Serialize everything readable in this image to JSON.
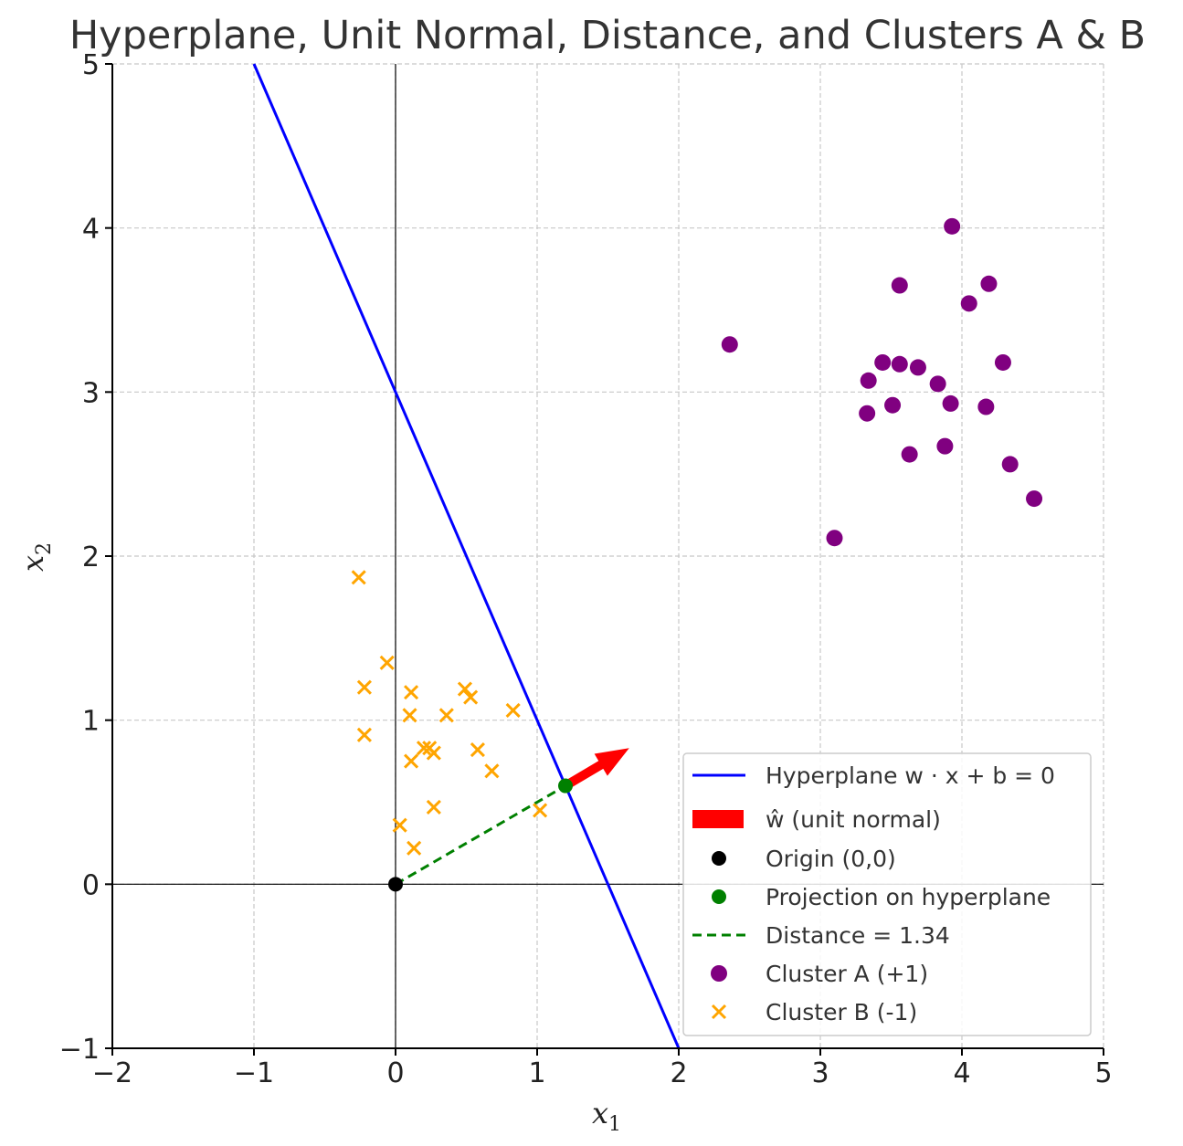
{
  "chart_data": {
    "type": "scatter",
    "title": "Hyperplane, Unit Normal, Distance, and Clusters A & B",
    "xlabel": "x",
    "xlabel_sub": "1",
    "ylabel": "x",
    "ylabel_sub": "2",
    "xlim": [
      -2,
      5
    ],
    "ylim": [
      -1,
      5
    ],
    "xticks": [
      -2,
      -1,
      0,
      1,
      2,
      3,
      4,
      5
    ],
    "yticks": [
      -1,
      0,
      1,
      2,
      3,
      4,
      5
    ],
    "grid": true,
    "legend_position": "lower-right",
    "hyperplane": {
      "x": [
        -1,
        2
      ],
      "y": [
        5,
        -1
      ],
      "color": "#0000ff"
    },
    "unit_normal": {
      "from": [
        1.2,
        0.6
      ],
      "to": [
        1.65,
        0.83
      ],
      "color": "#ff0000"
    },
    "origin": {
      "x": 0,
      "y": 0,
      "color": "#000000"
    },
    "projection": {
      "x": 1.2,
      "y": 0.6,
      "color": "#008000"
    },
    "distance_line": {
      "x": [
        0,
        1.2
      ],
      "y": [
        0,
        0.6
      ],
      "color": "#008000"
    },
    "cluster_a": {
      "color": "#800080",
      "points": [
        [
          2.36,
          3.29
        ],
        [
          3.93,
          4.01
        ],
        [
          3.56,
          3.65
        ],
        [
          4.19,
          3.66
        ],
        [
          4.05,
          3.54
        ],
        [
          3.44,
          3.18
        ],
        [
          3.56,
          3.17
        ],
        [
          3.69,
          3.15
        ],
        [
          4.29,
          3.18
        ],
        [
          3.34,
          3.07
        ],
        [
          3.83,
          3.05
        ],
        [
          3.51,
          2.92
        ],
        [
          3.92,
          2.93
        ],
        [
          4.17,
          2.91
        ],
        [
          3.33,
          2.87
        ],
        [
          3.88,
          2.67
        ],
        [
          3.63,
          2.62
        ],
        [
          4.34,
          2.56
        ],
        [
          4.51,
          2.35
        ],
        [
          3.1,
          2.11
        ]
      ]
    },
    "cluster_b": {
      "color": "#ffa500",
      "points": [
        [
          -0.26,
          1.87
        ],
        [
          -0.06,
          1.35
        ],
        [
          -0.22,
          1.2
        ],
        [
          0.11,
          1.17
        ],
        [
          0.49,
          1.19
        ],
        [
          0.53,
          1.14
        ],
        [
          0.1,
          1.03
        ],
        [
          0.36,
          1.03
        ],
        [
          0.83,
          1.06
        ],
        [
          -0.22,
          0.91
        ],
        [
          0.2,
          0.83
        ],
        [
          0.24,
          0.83
        ],
        [
          0.27,
          0.8
        ],
        [
          0.58,
          0.82
        ],
        [
          0.11,
          0.75
        ],
        [
          0.68,
          0.69
        ],
        [
          0.27,
          0.47
        ],
        [
          1.02,
          0.45
        ],
        [
          0.03,
          0.36
        ],
        [
          0.13,
          0.22
        ]
      ]
    },
    "legend": [
      {
        "key": "hyperplane",
        "label": "Hyperplane w · x + b = 0"
      },
      {
        "key": "unit_normal",
        "label": "ŵ (unit normal)"
      },
      {
        "key": "origin",
        "label": "Origin (0,0)"
      },
      {
        "key": "projection",
        "label": "Projection on hyperplane"
      },
      {
        "key": "distance",
        "label": "Distance = 1.34"
      },
      {
        "key": "cluster_a",
        "label": "Cluster A (+1)"
      },
      {
        "key": "cluster_b",
        "label": "Cluster B (-1)"
      }
    ]
  }
}
